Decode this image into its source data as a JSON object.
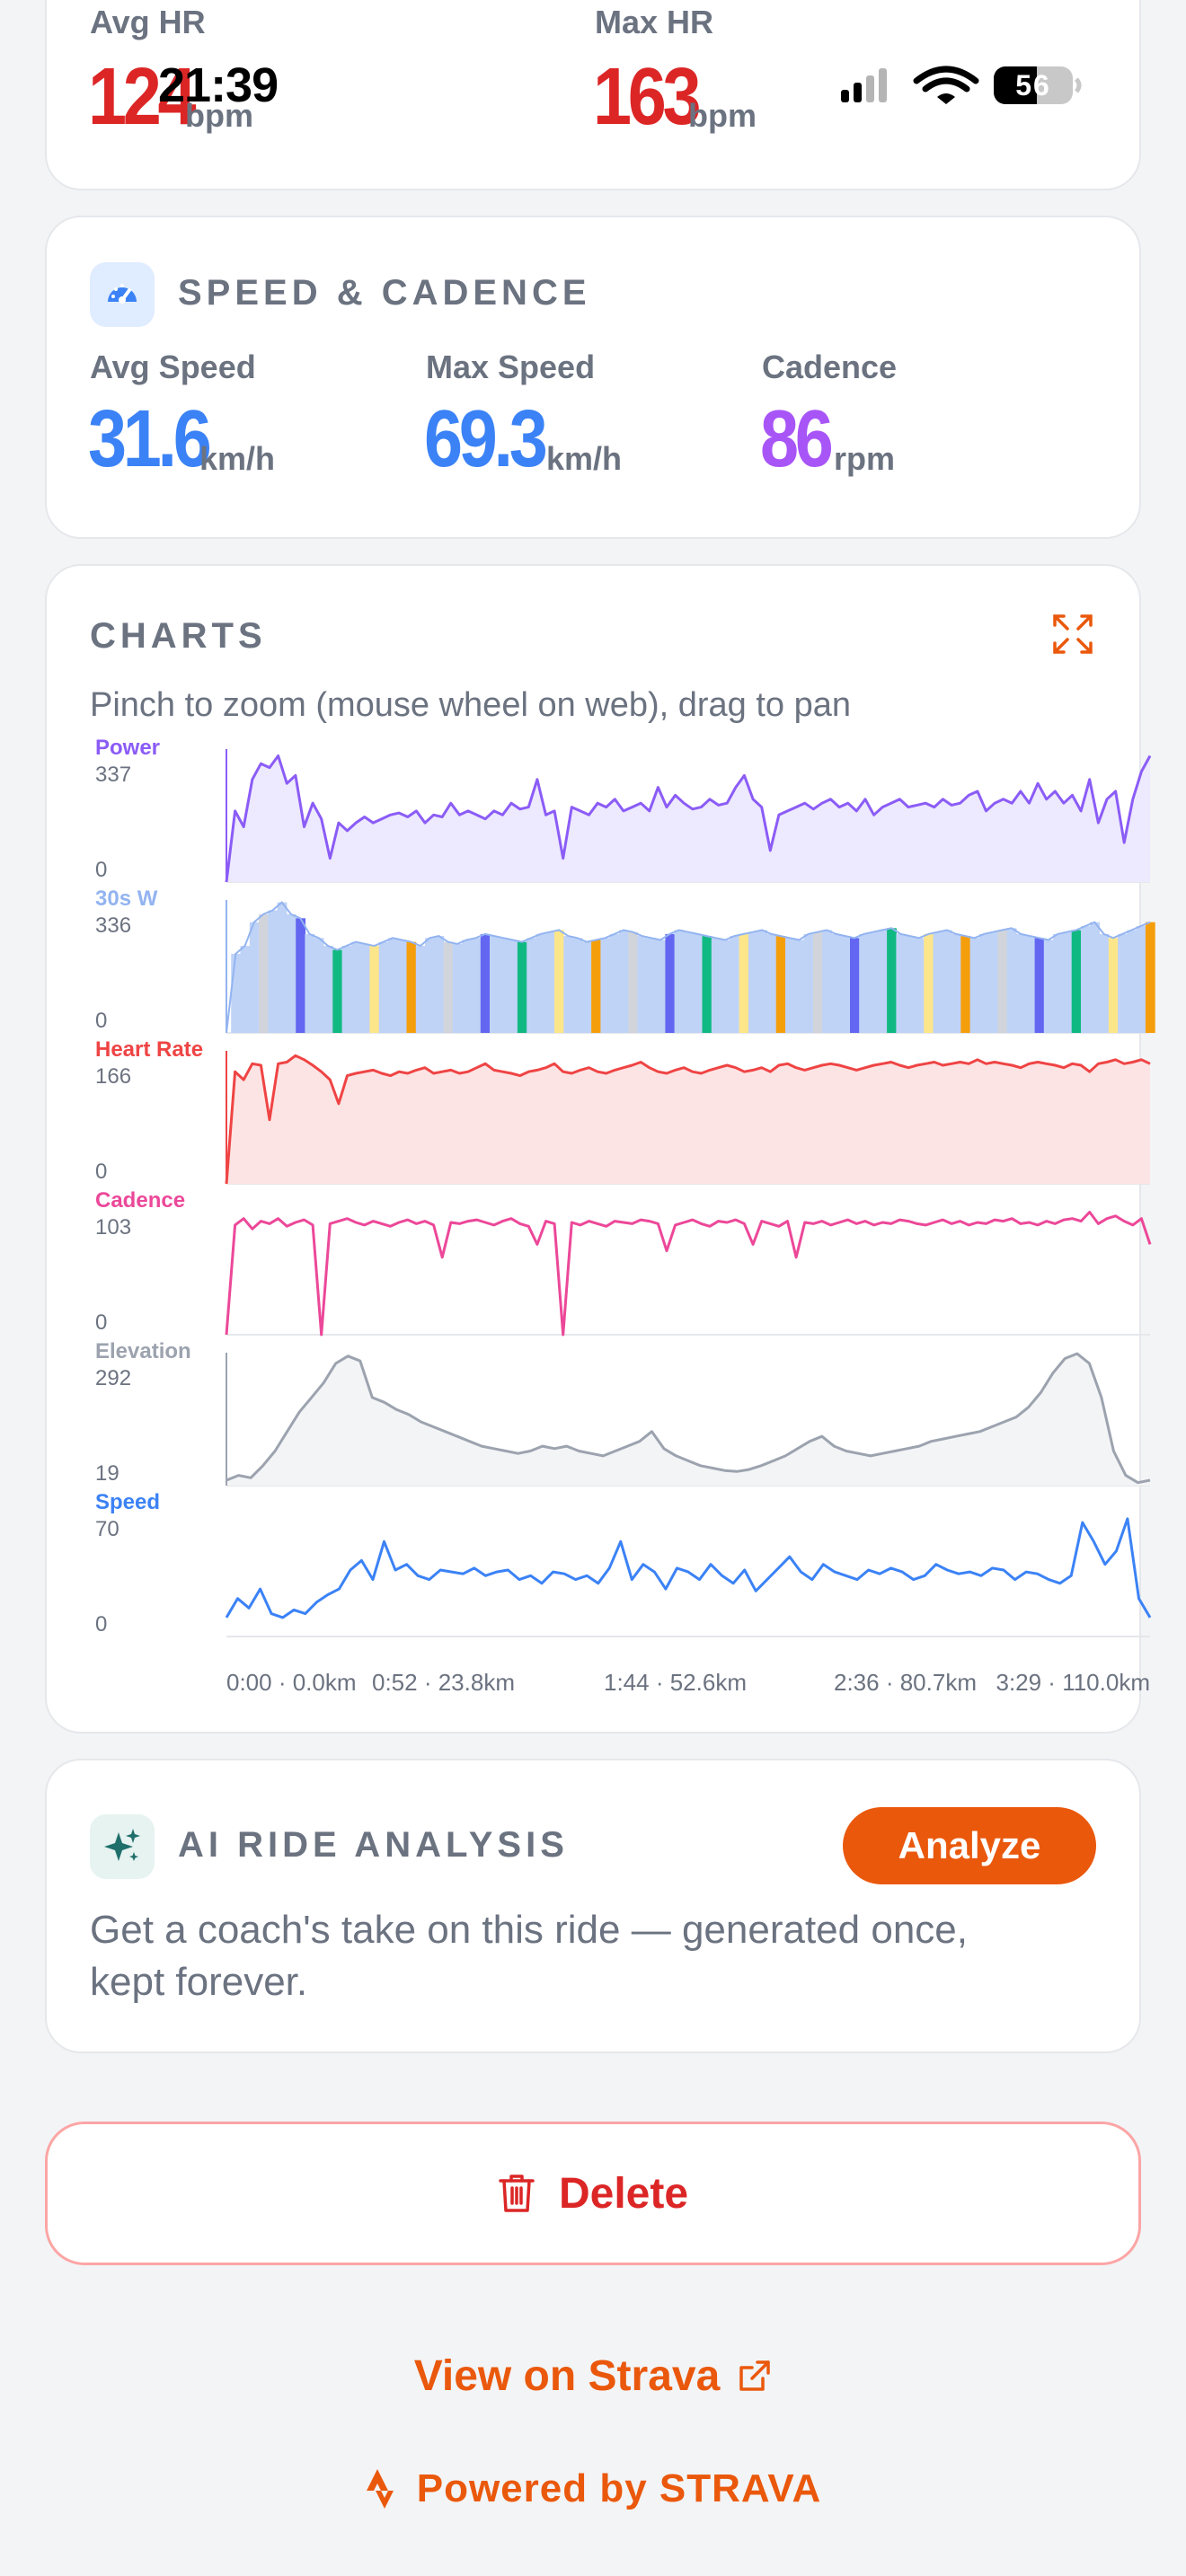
{
  "status_bar": {
    "time": "21:39",
    "battery": "56"
  },
  "heart_rate": {
    "avg_label": "Avg HR",
    "avg_value": "124",
    "avg_unit": "bpm",
    "max_label": "Max HR",
    "max_value": "163",
    "max_unit": "bpm",
    "color": "#dc2626"
  },
  "speed_cadence": {
    "title": "SPEED & CADENCE",
    "icon": "speedometer-icon",
    "avg_speed_label": "Avg Speed",
    "avg_speed_value": "31.6",
    "avg_speed_unit": "km/h",
    "max_speed_label": "Max Speed",
    "max_speed_value": "69.3",
    "max_speed_unit": "km/h",
    "cadence_label": "Cadence",
    "cadence_value": "86",
    "cadence_unit": "rpm",
    "speed_color": "#3b82f6",
    "cadence_color": "#a855f7"
  },
  "charts": {
    "title": "CHARTS",
    "hint": "Pinch to zoom (mouse wheel on web), drag to pan",
    "expand_icon": "expand-icon",
    "x_ticks": [
      "0:00 · 0.0km",
      "0:52 · 23.8km",
      "1:44 · 52.6km",
      "2:36 · 80.7km",
      "3:29 · 110.0km"
    ]
  },
  "chart_data": {
    "type": "line",
    "x_ticks": [
      "0:00 · 0.0km",
      "0:52 · 23.8km",
      "1:44 · 52.6km",
      "2:36 · 80.7km",
      "3:29 · 110.0km"
    ],
    "panels": [
      {
        "key": "power",
        "name": "Power",
        "max": "337",
        "min": "0",
        "ylim": [
          0,
          337
        ],
        "color": "#8b5cf6",
        "fill": "#ede9fe",
        "kind": "area",
        "values": [
          0,
          180,
          140,
          260,
          300,
          290,
          320,
          250,
          270,
          140,
          200,
          160,
          60,
          150,
          130,
          150,
          165,
          150,
          160,
          170,
          175,
          165,
          180,
          150,
          170,
          165,
          200,
          170,
          180,
          170,
          160,
          180,
          170,
          200,
          185,
          190,
          260,
          170,
          180,
          60,
          190,
          180,
          170,
          200,
          190,
          210,
          180,
          190,
          200,
          180,
          240,
          190,
          220,
          200,
          185,
          190,
          210,
          195,
          200,
          240,
          270,
          210,
          190,
          80,
          170,
          180,
          190,
          200,
          185,
          200,
          210,
          190,
          200,
          180,
          210,
          170,
          190,
          200,
          210,
          190,
          195,
          200,
          190,
          210,
          195,
          200,
          220,
          230,
          180,
          200,
          210,
          200,
          230,
          200,
          250,
          210,
          230,
          200,
          220,
          180,
          260,
          150,
          210,
          230,
          100,
          210,
          280,
          320
        ]
      },
      {
        "key": "power30s",
        "name": "30s W",
        "max": "336",
        "min": "0",
        "ylim": [
          0,
          336
        ],
        "color": "#93b4f0",
        "fill": "#bfd3f7",
        "kind": "area",
        "zone_colors": [
          "#f59e0b",
          "#fde68a",
          "#10b981",
          "#6366f1",
          "#d1d5db"
        ],
        "values": [
          0,
          200,
          220,
          280,
          300,
          310,
          330,
          300,
          290,
          250,
          240,
          220,
          210,
          220,
          230,
          225,
          220,
          230,
          240,
          235,
          230,
          220,
          240,
          245,
          230,
          225,
          235,
          240,
          250,
          245,
          240,
          235,
          230,
          240,
          250,
          255,
          260,
          245,
          240,
          230,
          235,
          240,
          250,
          260,
          255,
          245,
          240,
          235,
          250,
          260,
          255,
          250,
          245,
          240,
          235,
          245,
          250,
          255,
          260,
          250,
          245,
          240,
          235,
          250,
          255,
          260,
          250,
          245,
          240,
          250,
          255,
          260,
          265,
          250,
          245,
          240,
          250,
          255,
          260,
          250,
          245,
          240,
          250,
          255,
          260,
          265,
          250,
          245,
          240,
          235,
          250,
          255,
          260,
          270,
          280,
          250,
          240,
          250,
          260,
          270,
          280
        ]
      },
      {
        "key": "heart_rate",
        "name": "Heart Rate",
        "max": "166",
        "min": "0",
        "ylim": [
          0,
          166
        ],
        "color": "#ef4444",
        "fill": "#fde4e4",
        "kind": "area",
        "values": [
          0,
          140,
          130,
          150,
          148,
          80,
          150,
          152,
          160,
          155,
          148,
          140,
          130,
          100,
          135,
          138,
          140,
          142,
          138,
          135,
          140,
          138,
          142,
          145,
          138,
          140,
          142,
          138,
          140,
          145,
          150,
          142,
          140,
          138,
          135,
          140,
          142,
          145,
          150,
          140,
          138,
          142,
          145,
          140,
          138,
          142,
          145,
          148,
          152,
          145,
          140,
          138,
          142,
          145,
          140,
          138,
          142,
          145,
          148,
          145,
          140,
          142,
          145,
          140,
          148,
          150,
          145,
          142,
          145,
          148,
          150,
          148,
          145,
          142,
          145,
          148,
          150,
          152,
          148,
          145,
          148,
          150,
          152,
          148,
          150,
          152,
          150,
          155,
          150,
          152,
          150,
          148,
          145,
          150,
          152,
          150,
          148,
          145,
          150,
          148,
          140,
          150,
          152,
          155,
          150,
          152,
          155,
          150
        ]
      },
      {
        "key": "cadence",
        "name": "Cadence",
        "max": "103",
        "min": "0",
        "ylim": [
          0,
          103
        ],
        "color": "#ec4899",
        "fill": "none",
        "kind": "line",
        "values": [
          0,
          85,
          90,
          82,
          88,
          86,
          90,
          84,
          87,
          89,
          85,
          0,
          86,
          88,
          90,
          87,
          85,
          88,
          86,
          84,
          87,
          89,
          86,
          88,
          85,
          60,
          87,
          86,
          88,
          89,
          87,
          85,
          88,
          90,
          86,
          84,
          70,
          88,
          86,
          0,
          87,
          85,
          88,
          86,
          84,
          88,
          87,
          86,
          89,
          88,
          86,
          65,
          85,
          87,
          89,
          86,
          84,
          88,
          87,
          89,
          86,
          70,
          88,
          86,
          84,
          88,
          60,
          87,
          86,
          88,
          85,
          87,
          89,
          86,
          88,
          85,
          87,
          86,
          89,
          88,
          86,
          85,
          87,
          89,
          86,
          88,
          85,
          87,
          86,
          89,
          88,
          90,
          86,
          87,
          85,
          88,
          86,
          89,
          90,
          88,
          95,
          86,
          90,
          92,
          88,
          85,
          90,
          70
        ]
      },
      {
        "key": "elevation",
        "name": "Elevation",
        "max": "292",
        "min": "19",
        "ylim": [
          19,
          292
        ],
        "color": "#9ca3af",
        "fill": "#f3f4f6",
        "kind": "area",
        "values": [
          30,
          40,
          35,
          60,
          90,
          130,
          170,
          200,
          230,
          270,
          285,
          275,
          200,
          190,
          175,
          165,
          150,
          140,
          130,
          120,
          110,
          100,
          95,
          90,
          85,
          90,
          100,
          95,
          100,
          90,
          85,
          80,
          90,
          100,
          110,
          130,
          95,
          80,
          70,
          60,
          55,
          50,
          48,
          52,
          60,
          70,
          80,
          95,
          110,
          120,
          100,
          90,
          85,
          80,
          85,
          90,
          95,
          100,
          110,
          115,
          120,
          125,
          130,
          140,
          150,
          160,
          180,
          210,
          250,
          280,
          290,
          270,
          200,
          90,
          40,
          25,
          30
        ]
      },
      {
        "key": "speed",
        "name": "Speed",
        "max": "70",
        "min": "0",
        "ylim": [
          0,
          70
        ],
        "color": "#3b82f6",
        "fill": "none",
        "kind": "line",
        "values": [
          10,
          20,
          15,
          25,
          12,
          10,
          14,
          12,
          18,
          22,
          25,
          35,
          40,
          30,
          50,
          35,
          38,
          32,
          30,
          35,
          34,
          33,
          36,
          32,
          34,
          35,
          30,
          32,
          28,
          34,
          33,
          30,
          32,
          28,
          36,
          50,
          30,
          38,
          34,
          25,
          36,
          34,
          30,
          38,
          32,
          28,
          35,
          24,
          30,
          36,
          42,
          34,
          30,
          38,
          34,
          32,
          30,
          35,
          33,
          36,
          34,
          30,
          32,
          38,
          35,
          33,
          34,
          32,
          36,
          35,
          30,
          34,
          33,
          30,
          28,
          32,
          60,
          50,
          38,
          45,
          62,
          20,
          10
        ]
      }
    ]
  },
  "ai_analysis": {
    "title": "AI RIDE ANALYSIS",
    "icon": "sparkles-icon",
    "button_label": "Analyze",
    "description": "Get a coach's take on this ride — generated once, kept forever."
  },
  "actions": {
    "delete_label": "Delete",
    "delete_icon": "trash-icon",
    "strava_link_label": "View on Strava",
    "strava_link_icon": "external-link-icon",
    "powered_label": "Powered by STRAVA",
    "powered_icon": "strava-logo-icon",
    "accent": "#ea580c",
    "danger": "#dc2626"
  }
}
